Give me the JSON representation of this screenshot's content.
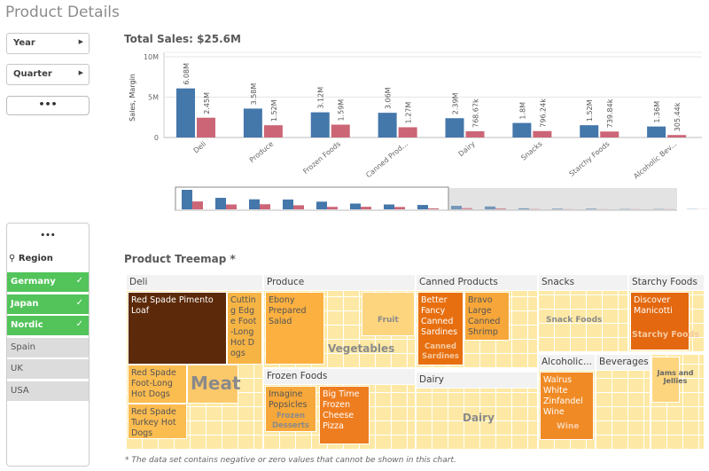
{
  "page_title": "Product Details",
  "filters": {
    "year": "Year",
    "quarter": "Quarter",
    "more": "•••"
  },
  "region": {
    "more": "•••",
    "label": "Region",
    "items": [
      {
        "label": "Germany",
        "selected": true
      },
      {
        "label": "Japan",
        "selected": true
      },
      {
        "label": "Nordic",
        "selected": true
      },
      {
        "label": "Spain",
        "selected": false
      },
      {
        "label": "UK",
        "selected": false
      },
      {
        "label": "USA",
        "selected": false
      }
    ]
  },
  "chart_data": {
    "type": "bar",
    "title": "Total Sales: $25.6M",
    "ylabel": "Sales, Margin",
    "ylim": [
      0,
      10000000
    ],
    "yticks": [
      "0",
      "5M",
      "10M"
    ],
    "categories": [
      "Deli",
      "Produce",
      "Frozen Foods",
      "Canned Prod...",
      "Dairy",
      "Snacks",
      "Starchy Foods",
      "Alcoholic Bev..."
    ],
    "series": [
      {
        "values": [
          6080000,
          3580000,
          3120000,
          3060000,
          2390000,
          1800000,
          1520000,
          1360000
        ],
        "labels": [
          "6.08M",
          "3.58M",
          "3.12M",
          "3.06M",
          "2.39M",
          "1.8M",
          "1.52M",
          "1.36M"
        ],
        "color": "#4477aa"
      },
      {
        "values": [
          2450000,
          1520000,
          1590000,
          1270000,
          768670,
          796240,
          739840,
          305440
        ],
        "labels": [
          "2.45M",
          "1.52M",
          "1.59M",
          "1.27M",
          "768.67k",
          "796.24k",
          "739.84k",
          "305.44k"
        ],
        "color": "#cc6677"
      }
    ],
    "grid": true
  },
  "treemap": {
    "title": "Product Treemap *",
    "groups": [
      "Deli",
      "Produce",
      "Frozen Foods",
      "Canned Products",
      "Dairy",
      "Snacks",
      "Starchy Foods",
      "Alcoholic...",
      "Beverages"
    ],
    "tiles": [
      "Red Spade Pimento Loaf",
      "Cutting Edge Foot-Long Hot Dogs",
      "Red Spade Foot-Long Hot Dogs",
      "Red Spade Turkey Hot Dogs",
      "Ebony Prepared Salad",
      "Imagine Popsicles",
      "Big Time Frozen Cheese Pizza",
      "Better Fancy Canned Sardines",
      "Bravo Large Canned Shrimp",
      "Discover Manicotti",
      "Walrus White Zinfandel Wine"
    ],
    "sublabels": [
      "Meat",
      "Vegetables",
      "Fruit",
      "Frozen Desserts",
      "Canned Sardines",
      "Snack Foods",
      "Starchy Foods",
      "Dairy",
      "Jams and Jellies",
      "Wine"
    ]
  },
  "footnote": "* The data set contains negative or zero values that cannot be shown in this chart."
}
